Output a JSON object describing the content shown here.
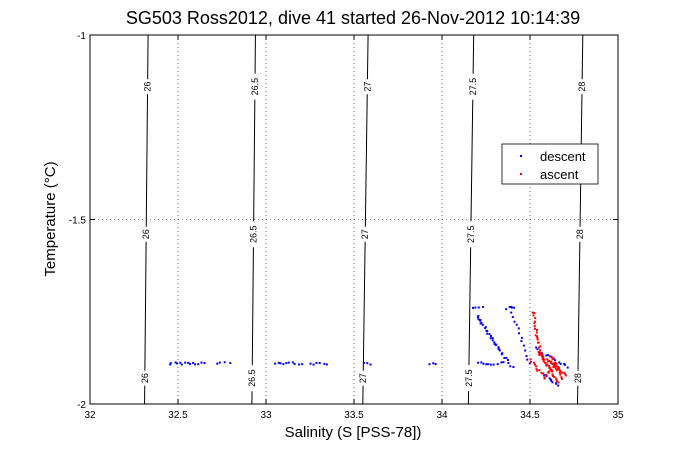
{
  "chart_data": {
    "type": "scatter",
    "title": "SG503 Ross2012, dive 41 started 26-Nov-2012 10:14:39",
    "xlabel": "Salinity (S [PSS-78])",
    "ylabel": "Temperature (°C)",
    "xlim": [
      32,
      35
    ],
    "ylim": [
      -2,
      -1
    ],
    "xticks": [
      "32",
      "32.5",
      "33",
      "33.5",
      "34",
      "34.5",
      "35"
    ],
    "yticks": [
      "-2",
      "-1.5",
      "-1"
    ],
    "grid": true,
    "legend_position": "right",
    "contours": [
      {
        "label": "26",
        "top_x": 32.33,
        "bottom_x": 32.31
      },
      {
        "label": "26.5",
        "top_x": 32.94,
        "bottom_x": 32.92
      },
      {
        "label": "27",
        "top_x": 33.58,
        "bottom_x": 33.55
      },
      {
        "label": "27.5",
        "top_x": 34.18,
        "bottom_x": 34.15
      },
      {
        "label": "28",
        "top_x": 34.8,
        "bottom_x": 34.77
      }
    ],
    "series": [
      {
        "name": "descent",
        "color": "#0000ff",
        "segments": [
          {
            "from": [
              32.45,
              -1.89
            ],
            "to": [
              32.65,
              -1.89
            ],
            "n": 14
          },
          {
            "from": [
              32.72,
              -1.89
            ],
            "to": [
              32.79,
              -1.89
            ],
            "n": 4
          },
          {
            "from": [
              33.05,
              -1.89
            ],
            "to": [
              33.2,
              -1.89
            ],
            "n": 10
          },
          {
            "from": [
              33.25,
              -1.89
            ],
            "to": [
              33.35,
              -1.89
            ],
            "n": 6
          },
          {
            "from": [
              33.55,
              -1.89
            ],
            "to": [
              33.6,
              -1.89
            ],
            "n": 3
          },
          {
            "from": [
              33.93,
              -1.89
            ],
            "to": [
              33.97,
              -1.89
            ],
            "n": 3
          },
          {
            "from": [
              34.2,
              -1.89
            ],
            "to": [
              34.35,
              -1.89
            ],
            "n": 10
          },
          {
            "from": [
              34.18,
              -1.74
            ],
            "to": [
              34.23,
              -1.74
            ],
            "n": 4
          },
          {
            "from": [
              34.37,
              -1.74
            ],
            "to": [
              34.41,
              -1.74
            ],
            "n": 4
          },
          {
            "from": [
              34.2,
              -1.76
            ],
            "to": [
              34.32,
              -1.85
            ],
            "n": 24
          },
          {
            "from": [
              34.32,
              -1.85
            ],
            "to": [
              34.4,
              -1.9
            ],
            "n": 10
          },
          {
            "from": [
              34.39,
              -1.74
            ],
            "to": [
              34.5,
              -1.89
            ],
            "n": 14
          },
          {
            "from": [
              34.53,
              -1.85
            ],
            "to": [
              34.72,
              -1.9
            ],
            "n": 14
          },
          {
            "from": [
              34.58,
              -1.92
            ],
            "to": [
              34.66,
              -1.95
            ],
            "n": 10
          }
        ]
      },
      {
        "name": "ascent",
        "color": "#ff0000",
        "segments": [
          {
            "from": [
              34.52,
              -1.75
            ],
            "to": [
              34.54,
              -1.82
            ],
            "n": 12
          },
          {
            "from": [
              34.54,
              -1.82
            ],
            "to": [
              34.58,
              -1.88
            ],
            "n": 12
          },
          {
            "from": [
              34.55,
              -1.86
            ],
            "to": [
              34.66,
              -1.94
            ],
            "n": 26
          },
          {
            "from": [
              34.6,
              -1.88
            ],
            "to": [
              34.7,
              -1.92
            ],
            "n": 20
          },
          {
            "from": [
              34.58,
              -1.93
            ],
            "to": [
              34.65,
              -1.89
            ],
            "n": 14
          },
          {
            "from": [
              34.5,
              -1.88
            ],
            "to": [
              34.57,
              -1.92
            ],
            "n": 10
          },
          {
            "from": [
              34.62,
              -1.87
            ],
            "to": [
              34.68,
              -1.93
            ],
            "n": 12
          }
        ]
      }
    ]
  }
}
